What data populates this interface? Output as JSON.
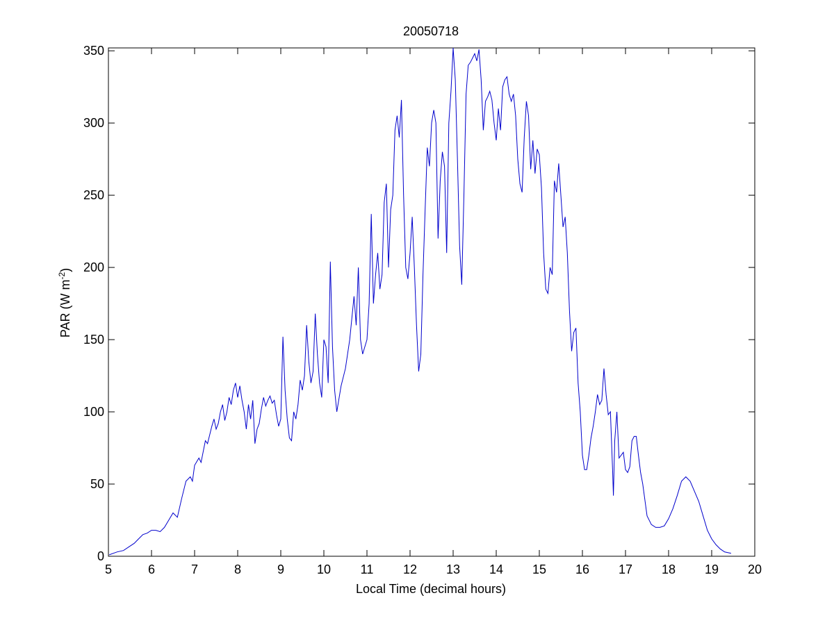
{
  "chart_data": {
    "type": "line",
    "title": "20050718",
    "xlabel": "Local Time (decimal hours)",
    "ylabel_main": "PAR (W m",
    "ylabel_sup": "-2",
    "ylabel_close": ")",
    "xlim": [
      5,
      20
    ],
    "ylim": [
      0,
      352
    ],
    "xticks": [
      5,
      6,
      7,
      8,
      9,
      10,
      11,
      12,
      13,
      14,
      15,
      16,
      17,
      18,
      19,
      20
    ],
    "yticks": [
      0,
      50,
      100,
      150,
      200,
      250,
      300,
      350
    ],
    "grid": false,
    "series": [
      {
        "color": "#0000cc",
        "points": [
          [
            5.02,
            1
          ],
          [
            5.2,
            3
          ],
          [
            5.35,
            4
          ],
          [
            5.5,
            7
          ],
          [
            5.6,
            9
          ],
          [
            5.7,
            12
          ],
          [
            5.8,
            15
          ],
          [
            5.9,
            16
          ],
          [
            6.0,
            18
          ],
          [
            6.1,
            18
          ],
          [
            6.2,
            17
          ],
          [
            6.3,
            20
          ],
          [
            6.4,
            25
          ],
          [
            6.5,
            30
          ],
          [
            6.6,
            27
          ],
          [
            6.7,
            40
          ],
          [
            6.8,
            52
          ],
          [
            6.9,
            55
          ],
          [
            6.95,
            52
          ],
          [
            7.0,
            63
          ],
          [
            7.1,
            68
          ],
          [
            7.15,
            65
          ],
          [
            7.25,
            80
          ],
          [
            7.3,
            78
          ],
          [
            7.4,
            90
          ],
          [
            7.45,
            95
          ],
          [
            7.5,
            88
          ],
          [
            7.55,
            92
          ],
          [
            7.6,
            100
          ],
          [
            7.65,
            105
          ],
          [
            7.7,
            94
          ],
          [
            7.75,
            100
          ],
          [
            7.8,
            110
          ],
          [
            7.85,
            105
          ],
          [
            7.9,
            115
          ],
          [
            7.95,
            120
          ],
          [
            8.0,
            110
          ],
          [
            8.05,
            118
          ],
          [
            8.1,
            108
          ],
          [
            8.15,
            100
          ],
          [
            8.2,
            88
          ],
          [
            8.25,
            105
          ],
          [
            8.3,
            95
          ],
          [
            8.35,
            108
          ],
          [
            8.4,
            78
          ],
          [
            8.45,
            88
          ],
          [
            8.5,
            92
          ],
          [
            8.55,
            102
          ],
          [
            8.6,
            110
          ],
          [
            8.65,
            104
          ],
          [
            8.7,
            108
          ],
          [
            8.75,
            111
          ],
          [
            8.8,
            106
          ],
          [
            8.85,
            108
          ],
          [
            8.9,
            98
          ],
          [
            8.95,
            90
          ],
          [
            9.0,
            95
          ],
          [
            9.05,
            152
          ],
          [
            9.1,
            115
          ],
          [
            9.15,
            95
          ],
          [
            9.2,
            82
          ],
          [
            9.25,
            80
          ],
          [
            9.3,
            100
          ],
          [
            9.35,
            95
          ],
          [
            9.4,
            105
          ],
          [
            9.45,
            122
          ],
          [
            9.5,
            115
          ],
          [
            9.55,
            125
          ],
          [
            9.6,
            160
          ],
          [
            9.65,
            135
          ],
          [
            9.7,
            120
          ],
          [
            9.75,
            128
          ],
          [
            9.8,
            168
          ],
          [
            9.85,
            140
          ],
          [
            9.9,
            120
          ],
          [
            9.95,
            110
          ],
          [
            10.0,
            150
          ],
          [
            10.05,
            145
          ],
          [
            10.1,
            120
          ],
          [
            10.15,
            204
          ],
          [
            10.2,
            145
          ],
          [
            10.25,
            115
          ],
          [
            10.3,
            100
          ],
          [
            10.4,
            118
          ],
          [
            10.5,
            130
          ],
          [
            10.6,
            150
          ],
          [
            10.7,
            180
          ],
          [
            10.75,
            160
          ],
          [
            10.8,
            200
          ],
          [
            10.85,
            150
          ],
          [
            10.9,
            140
          ],
          [
            11.0,
            150
          ],
          [
            11.05,
            175
          ],
          [
            11.1,
            237
          ],
          [
            11.15,
            175
          ],
          [
            11.2,
            195
          ],
          [
            11.25,
            210
          ],
          [
            11.3,
            185
          ],
          [
            11.35,
            195
          ],
          [
            11.4,
            245
          ],
          [
            11.45,
            258
          ],
          [
            11.5,
            200
          ],
          [
            11.55,
            240
          ],
          [
            11.6,
            250
          ],
          [
            11.65,
            295
          ],
          [
            11.7,
            305
          ],
          [
            11.75,
            290
          ],
          [
            11.8,
            316
          ],
          [
            11.85,
            250
          ],
          [
            11.9,
            200
          ],
          [
            11.95,
            192
          ],
          [
            12.0,
            210
          ],
          [
            12.05,
            235
          ],
          [
            12.1,
            200
          ],
          [
            12.15,
            160
          ],
          [
            12.2,
            128
          ],
          [
            12.25,
            140
          ],
          [
            12.3,
            195
          ],
          [
            12.35,
            240
          ],
          [
            12.4,
            283
          ],
          [
            12.45,
            270
          ],
          [
            12.5,
            300
          ],
          [
            12.55,
            309
          ],
          [
            12.6,
            300
          ],
          [
            12.65,
            220
          ],
          [
            12.7,
            260
          ],
          [
            12.75,
            280
          ],
          [
            12.8,
            270
          ],
          [
            12.85,
            210
          ],
          [
            12.9,
            300
          ],
          [
            12.95,
            322
          ],
          [
            13.0,
            352
          ],
          [
            13.05,
            330
          ],
          [
            13.1,
            275
          ],
          [
            13.15,
            215
          ],
          [
            13.2,
            188
          ],
          [
            13.25,
            250
          ],
          [
            13.3,
            320
          ],
          [
            13.35,
            340
          ],
          [
            13.4,
            342
          ],
          [
            13.45,
            345
          ],
          [
            13.5,
            348
          ],
          [
            13.55,
            343
          ],
          [
            13.6,
            351
          ],
          [
            13.65,
            330
          ],
          [
            13.7,
            295
          ],
          [
            13.75,
            315
          ],
          [
            13.8,
            318
          ],
          [
            13.85,
            322
          ],
          [
            13.9,
            316
          ],
          [
            13.95,
            300
          ],
          [
            14.0,
            288
          ],
          [
            14.05,
            310
          ],
          [
            14.1,
            295
          ],
          [
            14.15,
            325
          ],
          [
            14.2,
            330
          ],
          [
            14.25,
            332
          ],
          [
            14.3,
            320
          ],
          [
            14.35,
            315
          ],
          [
            14.4,
            320
          ],
          [
            14.45,
            305
          ],
          [
            14.5,
            275
          ],
          [
            14.55,
            258
          ],
          [
            14.6,
            252
          ],
          [
            14.65,
            290
          ],
          [
            14.7,
            315
          ],
          [
            14.75,
            305
          ],
          [
            14.8,
            268
          ],
          [
            14.85,
            288
          ],
          [
            14.9,
            265
          ],
          [
            14.95,
            282
          ],
          [
            15.0,
            278
          ],
          [
            15.05,
            255
          ],
          [
            15.1,
            210
          ],
          [
            15.15,
            185
          ],
          [
            15.2,
            182
          ],
          [
            15.25,
            200
          ],
          [
            15.3,
            195
          ],
          [
            15.35,
            260
          ],
          [
            15.4,
            252
          ],
          [
            15.45,
            272
          ],
          [
            15.5,
            250
          ],
          [
            15.55,
            228
          ],
          [
            15.6,
            235
          ],
          [
            15.65,
            210
          ],
          [
            15.7,
            170
          ],
          [
            15.75,
            142
          ],
          [
            15.8,
            155
          ],
          [
            15.85,
            158
          ],
          [
            15.9,
            120
          ],
          [
            15.95,
            100
          ],
          [
            16.0,
            70
          ],
          [
            16.05,
            60
          ],
          [
            16.1,
            60
          ],
          [
            16.15,
            70
          ],
          [
            16.2,
            82
          ],
          [
            16.25,
            90
          ],
          [
            16.3,
            100
          ],
          [
            16.35,
            112
          ],
          [
            16.4,
            105
          ],
          [
            16.45,
            108
          ],
          [
            16.5,
            130
          ],
          [
            16.55,
            112
          ],
          [
            16.6,
            98
          ],
          [
            16.65,
            100
          ],
          [
            16.7,
            60
          ],
          [
            16.72,
            42
          ],
          [
            16.75,
            80
          ],
          [
            16.8,
            100
          ],
          [
            16.85,
            68
          ],
          [
            16.9,
            70
          ],
          [
            16.95,
            72
          ],
          [
            17.0,
            60
          ],
          [
            17.05,
            58
          ],
          [
            17.1,
            62
          ],
          [
            17.15,
            80
          ],
          [
            17.2,
            83
          ],
          [
            17.25,
            83
          ],
          [
            17.3,
            70
          ],
          [
            17.35,
            58
          ],
          [
            17.4,
            50
          ],
          [
            17.5,
            28
          ],
          [
            17.6,
            22
          ],
          [
            17.7,
            20
          ],
          [
            17.8,
            20
          ],
          [
            17.9,
            21
          ],
          [
            18.0,
            26
          ],
          [
            18.1,
            33
          ],
          [
            18.2,
            42
          ],
          [
            18.3,
            52
          ],
          [
            18.4,
            55
          ],
          [
            18.5,
            52
          ],
          [
            18.6,
            45
          ],
          [
            18.7,
            38
          ],
          [
            18.8,
            28
          ],
          [
            18.9,
            18
          ],
          [
            19.0,
            12
          ],
          [
            19.1,
            8
          ],
          [
            19.2,
            5
          ],
          [
            19.3,
            3
          ],
          [
            19.45,
            2
          ]
        ]
      }
    ]
  }
}
